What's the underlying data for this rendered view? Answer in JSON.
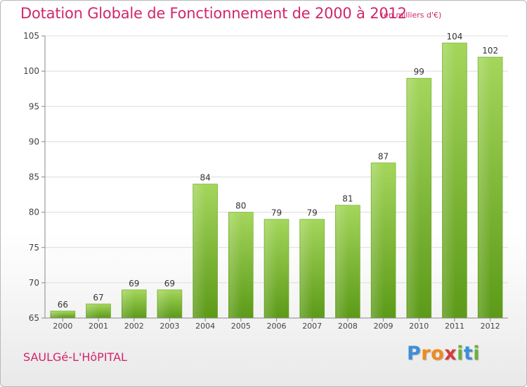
{
  "header": {
    "title": "Dotation Globale de Fonctionnement de 2000 à 2012",
    "unit_note": "(en milliers d'€)"
  },
  "footer": {
    "commune": "SAULGé-L'HôPITAL",
    "logo_letters": [
      "P",
      "r",
      "o",
      "x",
      "i",
      "t",
      "i"
    ],
    "logo_colors": [
      "#3c8fd8",
      "#f08a1c",
      "#f08a1c",
      "#d83a3a",
      "#6ab03a",
      "#3c8fd8",
      "#6ab03a"
    ]
  },
  "colors": {
    "title": "#d0266c",
    "bar_light": "#a4d65c",
    "bar_dark": "#5c9a18",
    "grid": "#dcdcdc",
    "axis": "#555555"
  },
  "chart_data": {
    "type": "bar",
    "title": "Dotation Globale de Fonctionnement de 2000 à 2012",
    "subtitle": "(en milliers d'€)",
    "categories": [
      "2000",
      "2001",
      "2002",
      "2003",
      "2004",
      "2005",
      "2006",
      "2007",
      "2008",
      "2009",
      "2010",
      "2011",
      "2012"
    ],
    "values": [
      66,
      67,
      69,
      69,
      84,
      80,
      79,
      79,
      81,
      87,
      99,
      104,
      102
    ],
    "ylim": [
      65,
      105
    ],
    "yticks": [
      65,
      70,
      75,
      80,
      85,
      90,
      95,
      100,
      105
    ],
    "xlabel": "",
    "ylabel": "",
    "grid": true,
    "data_labels": true
  }
}
